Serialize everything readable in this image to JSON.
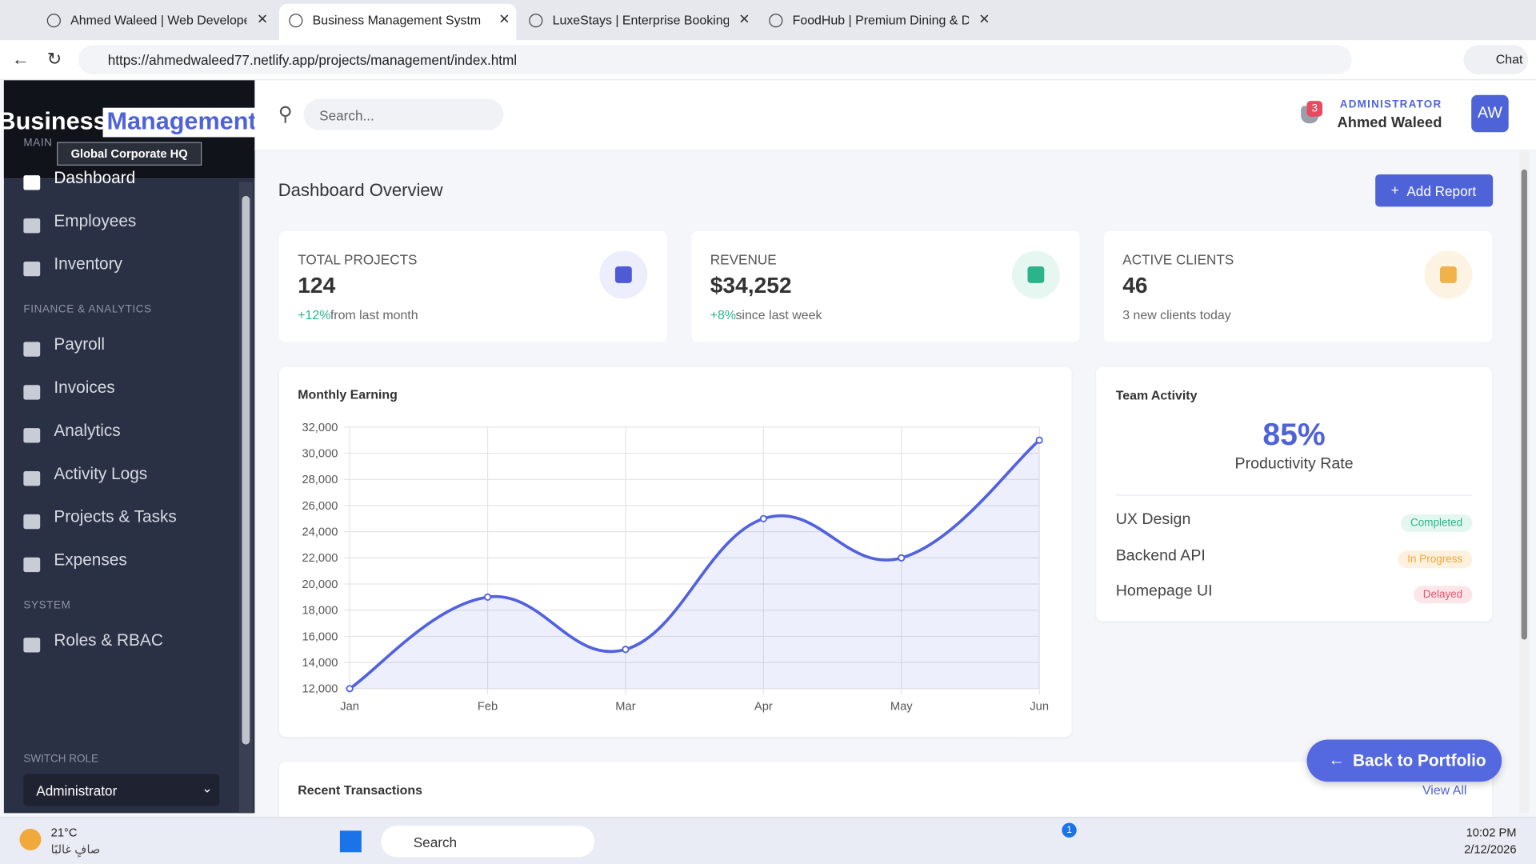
{
  "browser": {
    "tabs": [
      "Ahmed Waleed | Web Developer",
      "Business Management Systm",
      "LuxeStays | Enterprise Booking Eco",
      "FoodHub | Premium Dining & Deli"
    ],
    "url": "https://ahmedwaleed77.netlify.app/projects/management/index.html",
    "chat": "Chat"
  },
  "sidebar": {
    "brand": [
      "Business",
      "Management"
    ],
    "subtitle": "Global Corporate HQ",
    "sections": [
      {
        "title": "MAIN",
        "items": [
          "Dashboard",
          "Employees",
          "Inventory"
        ]
      },
      {
        "title": "FINANCE & ANALYTICS",
        "items": [
          "Payroll",
          "Invoices",
          "Analytics",
          "Activity Logs",
          "Projects & Tasks",
          "Expenses"
        ]
      },
      {
        "title": "SYSTEM",
        "items": [
          "Roles & RBAC"
        ]
      }
    ],
    "role_title": "SWITCH ROLE",
    "role": "Administrator"
  },
  "topbar": {
    "search": "Search...",
    "notifications": "3",
    "role": "ADMINISTRATOR",
    "name": "Ahmed Waleed",
    "initials": "AW"
  },
  "page": {
    "title": "Dashboard Overview",
    "button": "Add Report"
  },
  "stats": [
    {
      "label": "TOTAL PROJECTS",
      "value": "124",
      "change": "+12%",
      "note": "from last month",
      "color": "#4f5bd5",
      "bg": "#eceefc"
    },
    {
      "label": "REVENUE",
      "value": "$34,252",
      "change": "+8%",
      "note": "since last week",
      "color": "#2bb48a",
      "bg": "#e6f7f1"
    },
    {
      "label": "ACTIVE CLIENTS",
      "value": "46",
      "note": "3 new clients today",
      "color": "#f0b34a",
      "bg": "#fdf3e2"
    }
  ],
  "chart_data": {
    "type": "line",
    "title": "Monthly Earning",
    "categories": [
      "Jan",
      "Feb",
      "Mar",
      "Apr",
      "May",
      "Jun"
    ],
    "values": [
      12000,
      19000,
      15000,
      25000,
      22000,
      31000
    ],
    "color": "#5161e0",
    "fill": "rgba(81,97,224,0.1)",
    "ylim": [
      12000,
      32000
    ],
    "yticks": [
      {
        "value": 12000,
        "label": "12,000"
      },
      {
        "value": 14000,
        "label": "14,000"
      },
      {
        "value": 16000,
        "label": "16,000"
      },
      {
        "value": 18000,
        "label": "18,000"
      },
      {
        "value": 20000,
        "label": "20,000"
      },
      {
        "value": 22000,
        "label": "22,000"
      },
      {
        "value": 24000,
        "label": "24,000"
      },
      {
        "value": 26000,
        "label": "26,000"
      },
      {
        "value": 28000,
        "label": "28,000"
      },
      {
        "value": 30000,
        "label": "30,000"
      },
      {
        "value": 32000,
        "label": "32,000"
      }
    ],
    "grid": true
  },
  "team": {
    "title": "Team Activity",
    "rate": "85%",
    "rate_label": "Productivity Rate",
    "tasks": [
      {
        "name": "UX Design",
        "status": "Completed",
        "color": "#2bb48a",
        "bg": "#e3f6ef"
      },
      {
        "name": "Backend API",
        "status": "In Progress",
        "color": "#f0a53a",
        "bg": "#fdf1de"
      },
      {
        "name": "Homepage UI",
        "status": "Delayed",
        "color": "#e0556a",
        "bg": "#fce6e9"
      }
    ]
  },
  "transactions": {
    "title": "Recent Transactions",
    "link": "View All"
  },
  "floating": "Back to Portfolio",
  "taskbar": {
    "temp": "21°C",
    "weather": "صافٍ غالبًا",
    "search": "Search",
    "badge": "1",
    "time": "10:02 PM",
    "date": "2/12/2026"
  }
}
